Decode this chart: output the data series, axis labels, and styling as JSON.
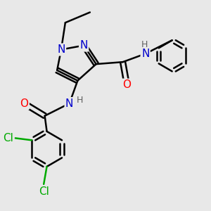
{
  "background_color": "#e8e8e8",
  "bond_color": "#000000",
  "bond_width": 1.8,
  "atom_colors": {
    "N": "#0000cc",
    "O": "#ff0000",
    "Cl": "#00aa00",
    "C": "#000000",
    "H": "#606060"
  },
  "fig_width": 3.0,
  "fig_height": 3.0,
  "dpi": 100
}
